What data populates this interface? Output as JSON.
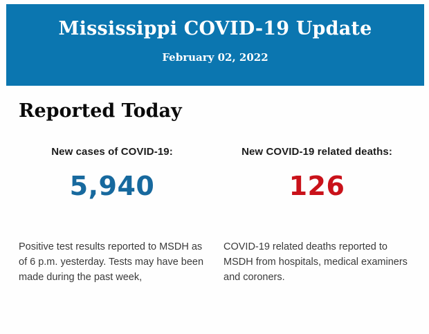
{
  "banner": {
    "title": "Mississippi COVID-19 Update",
    "date": "February 02, 2022",
    "background_color": "#0b76b0",
    "text_color": "#ffffff"
  },
  "section": {
    "heading": "Reported Today"
  },
  "stats": {
    "cases": {
      "label": "New cases of COVID-19:",
      "value": "5,940",
      "value_color": "#17699e",
      "description": "Positive test results reported to MSDH as of 6 p.m. yesterday. Tests may have been made during the past week,"
    },
    "deaths": {
      "label": "New COVID-19 related deaths:",
      "value": "126",
      "value_color": "#c9121a",
      "description": "COVID-19 related deaths reported to MSDH from hospitals, medical examiners and coroners."
    }
  }
}
